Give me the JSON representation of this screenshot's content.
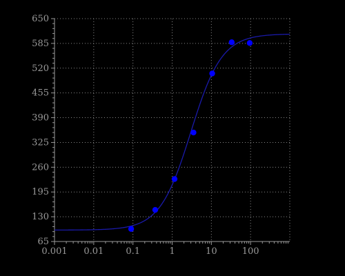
{
  "chart_data": {
    "type": "scatter",
    "title": "",
    "xlabel": "",
    "ylabel": "",
    "x_scale": "log",
    "xlim": [
      0.001,
      1000
    ],
    "ylim": [
      65,
      650
    ],
    "x_ticks": [
      0.001,
      0.01,
      0.1,
      1,
      10,
      100
    ],
    "x_tick_labels": [
      "0.001",
      "0.01",
      "0.1",
      "1",
      "10",
      "100"
    ],
    "y_ticks": [
      65,
      130,
      195,
      260,
      325,
      390,
      455,
      520,
      585,
      650
    ],
    "y_tick_labels": [
      "65",
      "130",
      "195",
      "260",
      "325",
      "390",
      "455",
      "520",
      "585",
      "650"
    ],
    "grid": true,
    "legend": "none",
    "series": [
      {
        "kind": "points",
        "color": "#0000ff",
        "x": [
          0.09,
          0.37,
          1.15,
          3.5,
          10.5,
          33,
          95
        ],
        "y": [
          98,
          148,
          229,
          351,
          506,
          588,
          586
        ]
      },
      {
        "kind": "fit-curve",
        "color": "#1a1aaa",
        "model": "4PL",
        "bottom": 95,
        "top": 610,
        "ec50": 3.0,
        "hill": 1.1
      }
    ]
  },
  "colors": {
    "background": "#000000",
    "axis": "#9a9a9a",
    "grid": "#8a8a8a",
    "tick_text": "#9a9a9a"
  }
}
